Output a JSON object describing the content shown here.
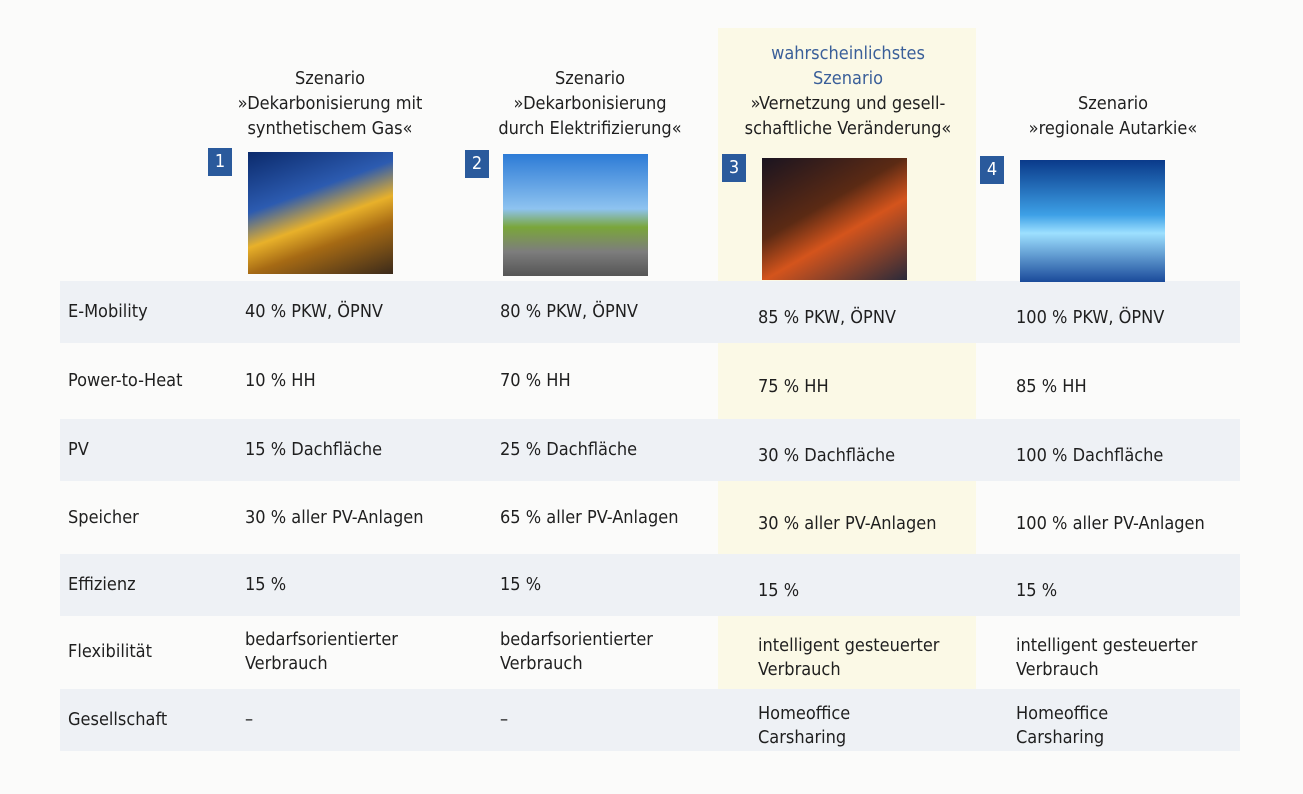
{
  "scenarios": [
    {
      "number": "1",
      "heading_lines": [
        "Szenario"
      ],
      "name_lines": [
        "»Dekarbonisierung mit",
        "synthetischem Gas«"
      ]
    },
    {
      "number": "2",
      "heading_lines": [
        "Szenario"
      ],
      "name_lines": [
        "»Dekarbonisierung",
        "durch Elektrifizierung«"
      ]
    },
    {
      "number": "3",
      "heading_lines": [
        "wahrscheinlichstes",
        "Szenario"
      ],
      "name_lines": [
        "»Vernetzung und gesell-",
        "schaftliche Veränderung«"
      ]
    },
    {
      "number": "4",
      "heading_lines": [
        "Szenario"
      ],
      "name_lines": [
        "»regionale Autarkie«"
      ]
    }
  ],
  "rows": [
    {
      "label": "E-Mobility",
      "cells": [
        [
          "40 % PKW, ÖPNV"
        ],
        [
          "80 % PKW, ÖPNV"
        ],
        [
          "85 % PKW, ÖPNV"
        ],
        [
          "100 % PKW, ÖPNV"
        ]
      ]
    },
    {
      "label": "Power-to-Heat",
      "cells": [
        [
          "10 % HH"
        ],
        [
          "70 % HH"
        ],
        [
          "75 % HH"
        ],
        [
          "85 % HH"
        ]
      ]
    },
    {
      "label": "PV",
      "cells": [
        [
          "15 % Dachfläche"
        ],
        [
          "25 % Dachfläche"
        ],
        [
          "30 % Dachfläche"
        ],
        [
          "100 % Dachfläche"
        ]
      ]
    },
    {
      "label": "Speicher",
      "cells": [
        [
          "30 % aller PV-Anlagen"
        ],
        [
          "65 % aller PV-Anlagen"
        ],
        [
          "30 % aller PV-Anlagen"
        ],
        [
          "100 % aller PV-Anlagen"
        ]
      ]
    },
    {
      "label": "Effizienz",
      "cells": [
        [
          "15 %"
        ],
        [
          "15 %"
        ],
        [
          "15 %"
        ],
        [
          "15 %"
        ]
      ]
    },
    {
      "label": "Flexibilität",
      "cells": [
        [
          "bedarfsorientierter",
          "Verbrauch"
        ],
        [
          "bedarfsorientierter",
          "Verbrauch"
        ],
        [
          "intelligent gesteuerter",
          "Verbrauch"
        ],
        [
          "intelligent gesteuerter",
          "Verbrauch"
        ]
      ]
    },
    {
      "label": "Gesellschaft",
      "cells": [
        [
          "–"
        ],
        [
          "–"
        ],
        [
          "Homeoffice",
          "Carsharing"
        ],
        [
          "Homeoffice",
          "Carsharing"
        ]
      ]
    }
  ]
}
